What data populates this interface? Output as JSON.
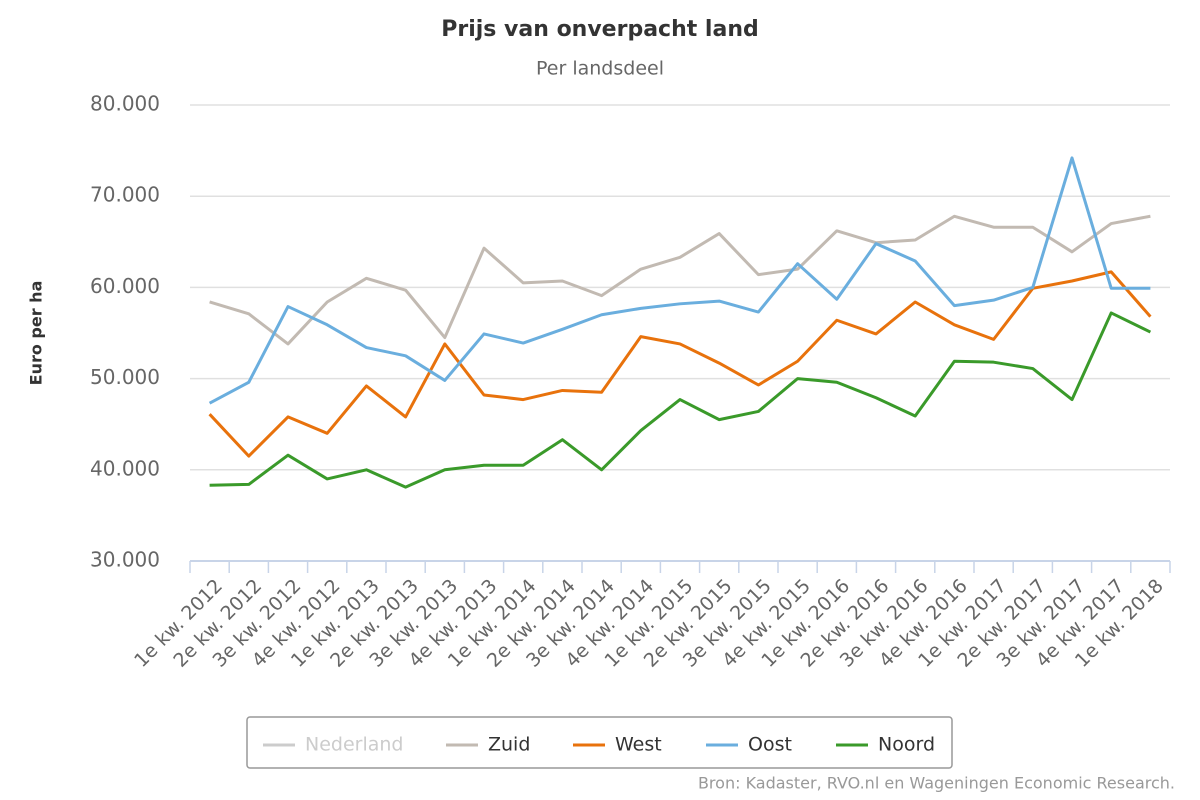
{
  "chart_data": {
    "type": "line",
    "title": "Prijs van onverpacht land",
    "subtitle": "Per landsdeel",
    "y_label": "Euro per ha",
    "source": "Bron: Kadaster, RVO.nl en Wageningen Economic Research.",
    "categories": [
      "1e kw. 2012",
      "2e kw. 2012",
      "3e kw. 2012",
      "4e kw. 2012",
      "1e kw. 2013",
      "2e kw. 2013",
      "3e kw. 2013",
      "4e kw. 2013",
      "1e kw. 2014",
      "2e kw. 2014",
      "3e kw. 2014",
      "4e kw. 2014",
      "1e kw. 2015",
      "2e kw. 2015",
      "3e kw. 2015",
      "4e kw. 2015",
      "1e kw. 2016",
      "2e kw. 2016",
      "3e kw. 2016",
      "4e kw. 2016",
      "1e kw. 2017",
      "2e kw. 2017",
      "3e kw. 2017",
      "4e kw. 2017",
      "1e kw. 2018"
    ],
    "series": [
      {
        "name": "Nederland",
        "color": "#cccccc",
        "visible": false,
        "values": [
          null,
          null,
          null,
          null,
          null,
          null,
          null,
          null,
          null,
          null,
          null,
          null,
          null,
          null,
          null,
          null,
          null,
          null,
          null,
          null,
          null,
          null,
          null,
          null,
          null
        ]
      },
      {
        "name": "Zuid",
        "color": "#c2bab2",
        "visible": true,
        "values": [
          58400,
          57100,
          53800,
          58400,
          61000,
          59700,
          54500,
          64300,
          60500,
          60700,
          59100,
          62000,
          63300,
          65900,
          61400,
          62000,
          66200,
          64900,
          65200,
          67800,
          66600,
          66600,
          63900,
          67000,
          67800
        ]
      },
      {
        "name": "West",
        "color": "#e8720c",
        "visible": true,
        "values": [
          46100,
          41500,
          45800,
          44000,
          49200,
          45800,
          53800,
          48200,
          47700,
          48700,
          48500,
          54600,
          53800,
          51700,
          49300,
          51900,
          56400,
          54900,
          58400,
          55900,
          54300,
          59900,
          60700,
          61700,
          56800
        ]
      },
      {
        "name": "Oost",
        "color": "#6aaede",
        "visible": true,
        "values": [
          47300,
          49600,
          57900,
          55900,
          53400,
          52500,
          49800,
          54900,
          53900,
          55400,
          57000,
          57700,
          58200,
          58500,
          57300,
          62600,
          58700,
          64800,
          62900,
          58000,
          58600,
          60000,
          74200,
          59900,
          59900
        ]
      },
      {
        "name": "Noord",
        "color": "#3a9a2a",
        "visible": true,
        "values": [
          38300,
          38400,
          41600,
          39000,
          40000,
          38100,
          40000,
          40500,
          40500,
          43300,
          40000,
          44300,
          47700,
          45500,
          46400,
          50000,
          49600,
          47900,
          45900,
          51900,
          51800,
          51100,
          47700,
          57200,
          55100
        ]
      }
    ],
    "ylim": [
      30000,
      80000
    ],
    "yticks": [
      {
        "value": 30000,
        "label": "30.000"
      },
      {
        "value": 40000,
        "label": "40.000"
      },
      {
        "value": 50000,
        "label": "50.000"
      },
      {
        "value": 60000,
        "label": "60.000"
      },
      {
        "value": 70000,
        "label": "70.000"
      },
      {
        "value": 80000,
        "label": "80.000"
      }
    ],
    "grid": true
  }
}
